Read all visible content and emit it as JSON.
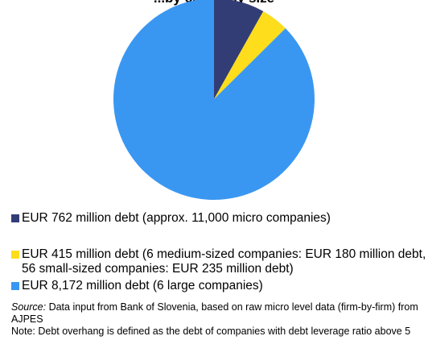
{
  "chart_data": {
    "type": "pie",
    "title": "...by company size",
    "unit": "EUR million",
    "slices": [
      {
        "label": "EUR 762 million debt (approx. 11,000 micro companies)",
        "value": 762,
        "color": "#333d75"
      },
      {
        "label": "EUR 415 million debt (6 medium-sized companies: EUR 180 million debt, 56 small-sized companies: EUR 235 million debt)",
        "value": 415,
        "color": "#fddd1c"
      },
      {
        "label": "EUR 8,172 million debt (6 large companies)",
        "value": 8172,
        "color": "#3a97f1"
      }
    ],
    "start_angle_deg": 0,
    "direction": "clockwise",
    "legend_position": "bottom"
  },
  "legend": [
    {
      "text": "EUR 762 million debt (approx. 11,000 micro companies)"
    },
    {
      "text": "EUR 415 million debt (6 medium-sized companies: EUR 180 million debt, 56 small-sized companies: EUR 235 million debt)"
    },
    {
      "text": "EUR 8,172 million debt (6 large companies)"
    }
  ],
  "notes": {
    "source_label": "Source:",
    "source_text": " Data input from Bank of Slovenia, based on raw micro level data (firm-by-firm) from AJPES",
    "note_text": "Note: Debt overhang is defined as the debt of companies with debt leverage ratio above 5"
  }
}
